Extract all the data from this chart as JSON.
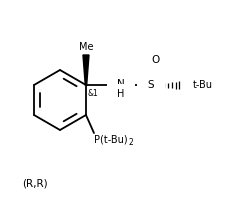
{
  "bg_color": "#ffffff",
  "line_color": "#000000",
  "lw": 1.3,
  "fs": 7.0,
  "fs_small": 5.5,
  "fig_width": 2.38,
  "fig_height": 2.08,
  "dpi": 100,
  "label_RR": "(R,R)",
  "label_Me": "Me",
  "label_NH": "NH",
  "label_H": "H",
  "label_S": "S",
  "label_O": "O",
  "label_tBu": "t-Bu",
  "label_stereo1": "&1",
  "label_stereo2": "&1"
}
